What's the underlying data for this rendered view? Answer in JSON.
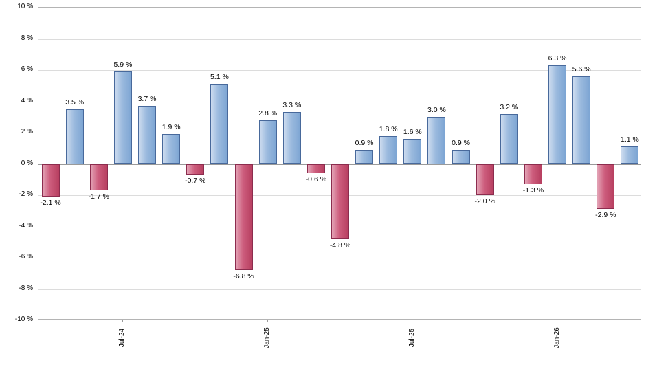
{
  "chart_data": {
    "type": "bar",
    "title": "",
    "xlabel": "",
    "ylabel": "",
    "ylim": [
      -10,
      10
    ],
    "ytick_step": 2,
    "ytick_labels": [
      "10 %",
      "8 %",
      "6 %",
      "4 %",
      "2 %",
      "0 %",
      "-2 %",
      "-4 %",
      "-6 %",
      "-8 %",
      "-10 %"
    ],
    "x_axis_ticks": [
      {
        "index": 3,
        "label": "Jul-24"
      },
      {
        "index": 9,
        "label": "Jan-25"
      },
      {
        "index": 15,
        "label": "Jul-25"
      },
      {
        "index": 21,
        "label": "Jan-26"
      }
    ],
    "values": [
      -2.1,
      3.5,
      -1.7,
      5.9,
      3.7,
      1.9,
      -0.7,
      5.1,
      -6.8,
      2.8,
      3.3,
      -0.6,
      -4.8,
      0.9,
      1.8,
      1.6,
      3.0,
      0.9,
      -2.0,
      3.2,
      -1.3,
      6.3,
      5.6,
      -2.9,
      1.1
    ],
    "value_labels": [
      "-2.1 %",
      "3.5 %",
      "-1.7 %",
      "5.9 %",
      "3.7 %",
      "1.9 %",
      "-0.7 %",
      "5.1 %",
      "-6.8 %",
      "2.8 %",
      "3.3 %",
      "-0.6 %",
      "-4.8 %",
      "0.9 %",
      "1.8 %",
      "1.6 %",
      "3.0 %",
      "0.9 %",
      "-2.0 %",
      "3.2 %",
      "-1.3 %",
      "6.3 %",
      "5.6 %",
      "-2.9 %",
      "1.1 %"
    ],
    "legend": [],
    "grid": "horizontal",
    "colors": {
      "positive_fill": "#8fb3dc",
      "positive_border": "#48699b",
      "negative_fill": "#c65276",
      "negative_border": "#8c2c4e",
      "gridline": "#dcdcdc",
      "zero_line": "#9a9a9a",
      "plot_border": "#b4b4b4",
      "label_text": "#000000"
    }
  }
}
